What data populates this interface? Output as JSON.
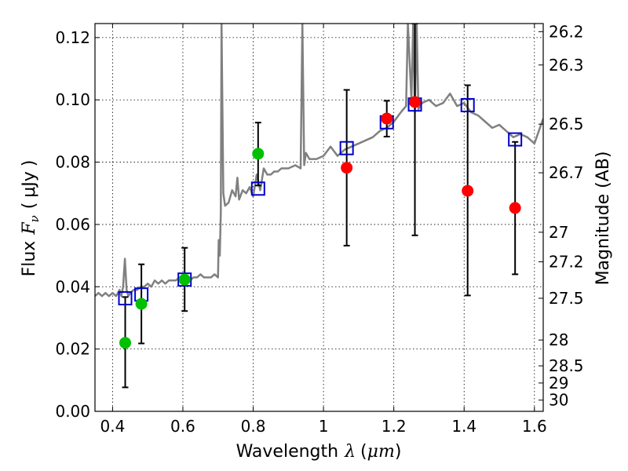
{
  "chart_data": {
    "type": "scatter",
    "title": "",
    "xlabel_text": "Wavelength",
    "xlabel_symbol": "λ",
    "xlabel_unit_open": "(",
    "xlabel_unit": "μm",
    "xlabel_unit_close": ")",
    "ylabel_text": "Flux",
    "ylabel_symbol": "F",
    "ylabel_subscript": "ν",
    "ylabel_unit_open": "(",
    "ylabel_unit": "μJy",
    "ylabel_unit_close": ")",
    "y2label": "Magnitude (AB)",
    "xlim": [
      0.35,
      1.625
    ],
    "ylim": [
      0.0,
      0.1245
    ],
    "grid": true,
    "x_ticks": [
      {
        "value": 0.4,
        "label": "0.4"
      },
      {
        "value": 0.6,
        "label": "0.6"
      },
      {
        "value": 0.8,
        "label": "0.8"
      },
      {
        "value": 1.0,
        "label": "1"
      },
      {
        "value": 1.2,
        "label": "1.2"
      },
      {
        "value": 1.4,
        "label": "1.4"
      },
      {
        "value": 1.6,
        "label": "1.6"
      }
    ],
    "y_ticks": [
      {
        "value": 0.0,
        "label": "0.00"
      },
      {
        "value": 0.02,
        "label": "0.02"
      },
      {
        "value": 0.04,
        "label": "0.04"
      },
      {
        "value": 0.06,
        "label": "0.06"
      },
      {
        "value": 0.08,
        "label": "0.08"
      },
      {
        "value": 0.1,
        "label": "0.10"
      },
      {
        "value": 0.12,
        "label": "0.12"
      }
    ],
    "y2_ticks": [
      {
        "flux": 0.1219,
        "label": "26.2"
      },
      {
        "flux": 0.1112,
        "label": "26.3"
      },
      {
        "flux": 0.0922,
        "label": "26.5"
      },
      {
        "flux": 0.0766,
        "label": "26.7"
      },
      {
        "flux": 0.0575,
        "label": "27"
      },
      {
        "flux": 0.048,
        "label": "27.2"
      },
      {
        "flux": 0.0363,
        "label": "27.5"
      },
      {
        "flux": 0.0229,
        "label": "28"
      },
      {
        "flux": 0.0146,
        "label": "28.5"
      },
      {
        "flux": 0.0091,
        "label": "29"
      },
      {
        "flux": 0.0036,
        "label": "30"
      }
    ],
    "series": [
      {
        "name": "model-spectrum",
        "style": "line",
        "color": "#808080",
        "x": [
          0.35,
          0.36,
          0.37,
          0.38,
          0.39,
          0.4,
          0.41,
          0.42,
          0.425,
          0.43,
          0.435,
          0.438,
          0.44,
          0.445,
          0.45,
          0.46,
          0.47,
          0.48,
          0.49,
          0.5,
          0.51,
          0.52,
          0.53,
          0.54,
          0.55,
          0.56,
          0.57,
          0.58,
          0.59,
          0.6,
          0.61,
          0.62,
          0.63,
          0.64,
          0.65,
          0.66,
          0.67,
          0.68,
          0.69,
          0.7,
          0.702,
          0.705,
          0.708,
          0.71,
          0.715,
          0.72,
          0.73,
          0.74,
          0.75,
          0.755,
          0.76,
          0.77,
          0.78,
          0.79,
          0.8,
          0.81,
          0.82,
          0.83,
          0.84,
          0.85,
          0.86,
          0.87,
          0.88,
          0.89,
          0.9,
          0.92,
          0.935,
          0.94,
          0.945,
          0.95,
          0.96,
          0.98,
          1.0,
          1.02,
          1.04,
          1.06,
          1.08,
          1.1,
          1.12,
          1.14,
          1.16,
          1.18,
          1.2,
          1.22,
          1.235,
          1.24,
          1.25,
          1.255,
          1.26,
          1.265,
          1.27,
          1.28,
          1.3,
          1.32,
          1.34,
          1.36,
          1.38,
          1.4,
          1.42,
          1.44,
          1.46,
          1.48,
          1.5,
          1.52,
          1.54,
          1.56,
          1.58,
          1.6,
          1.625
        ],
        "y": [
          0.037,
          0.038,
          0.037,
          0.038,
          0.037,
          0.038,
          0.037,
          0.039,
          0.037,
          0.04,
          0.049,
          0.043,
          0.039,
          0.037,
          0.038,
          0.039,
          0.039,
          0.04,
          0.04,
          0.041,
          0.04,
          0.042,
          0.041,
          0.042,
          0.041,
          0.042,
          0.042,
          0.042,
          0.043,
          0.042,
          0.043,
          0.042,
          0.043,
          0.043,
          0.044,
          0.043,
          0.043,
          0.043,
          0.044,
          0.043,
          0.055,
          0.05,
          0.064,
          0.1245,
          0.07,
          0.066,
          0.067,
          0.071,
          0.069,
          0.075,
          0.068,
          0.071,
          0.07,
          0.072,
          0.069,
          0.076,
          0.071,
          0.078,
          0.076,
          0.076,
          0.077,
          0.077,
          0.078,
          0.078,
          0.078,
          0.079,
          0.078,
          0.1245,
          0.079,
          0.083,
          0.081,
          0.081,
          0.082,
          0.085,
          0.082,
          0.084,
          0.085,
          0.086,
          0.087,
          0.088,
          0.09,
          0.091,
          0.093,
          0.096,
          0.098,
          0.1245,
          0.1,
          0.1245,
          0.096,
          0.1245,
          0.097,
          0.099,
          0.1,
          0.098,
          0.099,
          0.102,
          0.098,
          0.099,
          0.096,
          0.095,
          0.093,
          0.091,
          0.092,
          0.09,
          0.088,
          0.089,
          0.088,
          0.086,
          0.094
        ]
      },
      {
        "name": "green-photometry",
        "style": "marker-circle",
        "color": "#00c000",
        "points": [
          {
            "x": 0.436,
            "y": 0.022,
            "err_lo": 0.0077,
            "err_hi": 0.0367
          },
          {
            "x": 0.482,
            "y": 0.0345,
            "err_lo": 0.0218,
            "err_hi": 0.0472
          },
          {
            "x": 0.605,
            "y": 0.0423,
            "err_lo": 0.0322,
            "err_hi": 0.0525
          },
          {
            "x": 0.814,
            "y": 0.0827,
            "err_lo": 0.0725,
            "err_hi": 0.0927
          }
        ]
      },
      {
        "name": "red-photometry",
        "style": "marker-circle",
        "color": "#ff0000",
        "points": [
          {
            "x": 1.066,
            "y": 0.0782,
            "err_lo": 0.0532,
            "err_hi": 0.1032
          },
          {
            "x": 1.18,
            "y": 0.094,
            "err_lo": 0.0882,
            "err_hi": 0.0997
          },
          {
            "x": 1.26,
            "y": 0.0993,
            "err_lo": 0.0565,
            "err_hi": 0.1245
          },
          {
            "x": 1.41,
            "y": 0.0708,
            "err_lo": 0.0372,
            "err_hi": 0.1047
          },
          {
            "x": 1.545,
            "y": 0.0653,
            "err_lo": 0.044,
            "err_hi": 0.0865
          }
        ]
      },
      {
        "name": "model-bandpass-flux",
        "style": "marker-square-open",
        "color": "#0000cc",
        "points": [
          {
            "x": 0.436,
            "y": 0.0363
          },
          {
            "x": 0.482,
            "y": 0.0375
          },
          {
            "x": 0.605,
            "y": 0.0423
          },
          {
            "x": 0.814,
            "y": 0.0715
          },
          {
            "x": 1.066,
            "y": 0.0845
          },
          {
            "x": 1.18,
            "y": 0.0928
          },
          {
            "x": 1.26,
            "y": 0.0985
          },
          {
            "x": 1.41,
            "y": 0.0983
          },
          {
            "x": 1.545,
            "y": 0.0873
          }
        ]
      }
    ]
  }
}
